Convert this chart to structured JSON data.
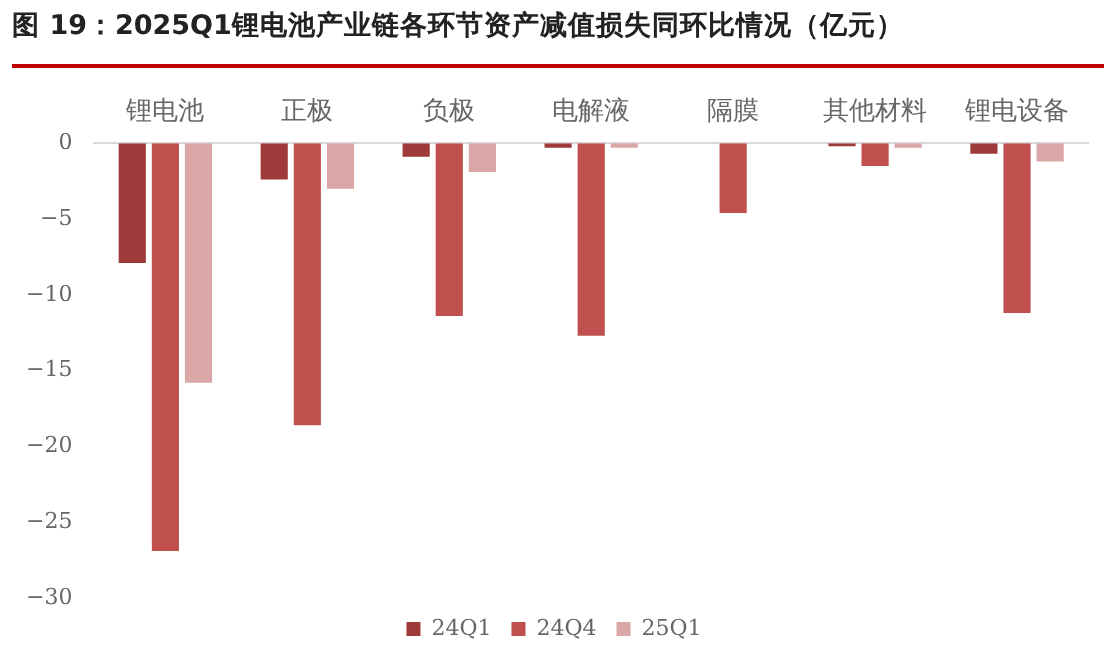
{
  "chart_data": {
    "type": "bar",
    "title": "图 19：2025Q1锂电池产业链各环节资产减值损失同环比情况（亿元）",
    "categories": [
      "锂电池",
      "正极",
      "负极",
      "电解液",
      "隔膜",
      "其他材料",
      "锂电设备"
    ],
    "series": [
      {
        "name": "24Q1",
        "color": "#9e3a3a",
        "values": [
          -7.9,
          -2.4,
          -0.9,
          -0.3,
          null,
          -0.2,
          -0.7
        ]
      },
      {
        "name": "24Q4",
        "color": "#c0504d",
        "values": [
          -26.9,
          -18.6,
          -11.4,
          -12.7,
          -4.6,
          -1.5,
          -11.2
        ]
      },
      {
        "name": "25Q1",
        "color": "#dba6a6",
        "values": [
          -15.8,
          -3.0,
          -1.9,
          -0.3,
          null,
          -0.3,
          -1.2
        ]
      }
    ],
    "ylim": [
      -30,
      0
    ],
    "yticks": [
      0,
      -5,
      -10,
      -15,
      -20,
      -25,
      -30
    ],
    "grid": false,
    "legend": "bottom"
  }
}
